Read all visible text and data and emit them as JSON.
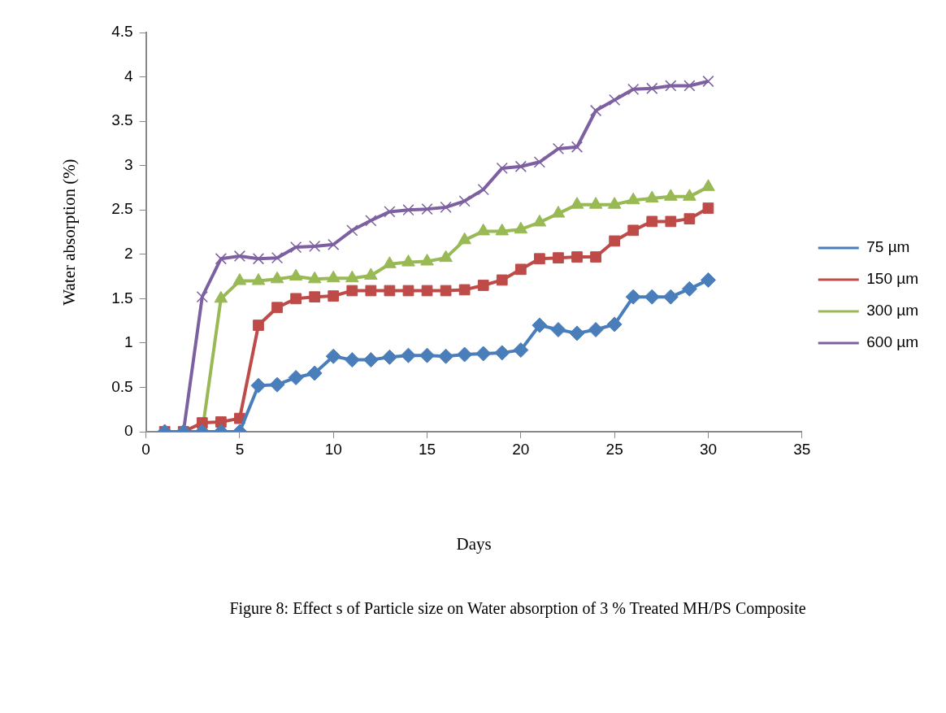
{
  "chart_data": {
    "type": "line",
    "xlabel": "Days",
    "ylabel": "Water absorption (%)",
    "annotations": [
      "Figure 8: Effect s of Particle size on Water absorption of 3 % Treated MH/PS Composite"
    ],
    "x": [
      1,
      2,
      3,
      4,
      5,
      6,
      7,
      8,
      9,
      10,
      11,
      12,
      13,
      14,
      15,
      16,
      17,
      18,
      19,
      20,
      21,
      22,
      23,
      24,
      25,
      26,
      27,
      28,
      29,
      30
    ],
    "series": [
      {
        "name": "75 µm",
        "color": "#4a7ebb",
        "marker": "diamond",
        "values": [
          0,
          0,
          0,
          0,
          0,
          0.52,
          0.53,
          0.61,
          0.66,
          0.85,
          0.81,
          0.81,
          0.84,
          0.86,
          0.86,
          0.85,
          0.87,
          0.88,
          0.89,
          0.92,
          1.2,
          1.15,
          1.11,
          1.15,
          1.21,
          1.52,
          1.52,
          1.52,
          1.61,
          1.71
        ]
      },
      {
        "name": "150 µm",
        "color": "#be4b48",
        "marker": "square",
        "values": [
          0,
          0,
          0.1,
          0.11,
          0.15,
          1.2,
          1.4,
          1.5,
          1.52,
          1.53,
          1.59,
          1.59,
          1.59,
          1.59,
          1.59,
          1.59,
          1.6,
          1.65,
          1.71,
          1.83,
          1.95,
          1.96,
          1.97,
          1.97,
          2.15,
          2.27,
          2.37,
          2.37,
          2.4,
          2.52
        ]
      },
      {
        "name": "300 µm",
        "color": "#98b954",
        "marker": "triangle",
        "values": [
          0,
          0,
          0,
          1.5,
          1.7,
          1.7,
          1.72,
          1.75,
          1.72,
          1.73,
          1.73,
          1.76,
          1.89,
          1.91,
          1.92,
          1.96,
          2.16,
          2.26,
          2.26,
          2.28,
          2.36,
          2.46,
          2.56,
          2.56,
          2.56,
          2.61,
          2.63,
          2.65,
          2.65,
          2.76
        ]
      },
      {
        "name": "600 µm",
        "color": "#7d60a0",
        "marker": "cross",
        "values": [
          0,
          0,
          1.52,
          1.95,
          1.98,
          1.95,
          1.96,
          2.08,
          2.09,
          2.11,
          2.27,
          2.38,
          2.48,
          2.5,
          2.51,
          2.53,
          2.6,
          2.73,
          2.97,
          2.99,
          3.04,
          3.19,
          3.21,
          3.62,
          3.74,
          3.86,
          3.87,
          3.9,
          3.9,
          3.95
        ]
      }
    ],
    "xlim": [
      0,
      35
    ],
    "xticks": [
      0,
      5,
      10,
      15,
      20,
      25,
      30,
      35
    ],
    "ylim": [
      0,
      4.5
    ],
    "yticks": [
      0,
      0.5,
      1,
      1.5,
      2,
      2.5,
      3,
      3.5,
      4,
      4.5
    ],
    "grid": false,
    "legend": "right"
  }
}
